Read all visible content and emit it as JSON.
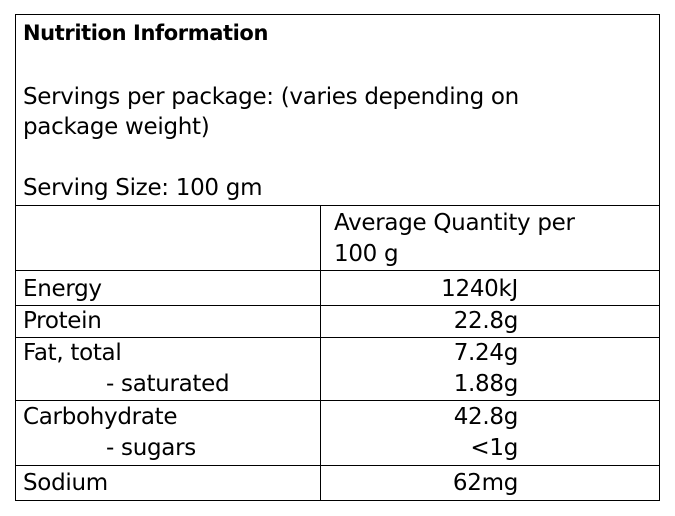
{
  "panel": {
    "title": "Nutrition Information",
    "servings_line1": "Servings per package: (varies depending on",
    "servings_line2": "package weight)",
    "serving_size": "Serving Size: 100 gm"
  },
  "table": {
    "column_header_line1": "Average Quantity per",
    "column_header_line2": "100 g",
    "rows": [
      {
        "label": "Energy",
        "value": "1240kJ"
      },
      {
        "label": "Protein",
        "value": "22.8g"
      },
      {
        "label": "Fat, total",
        "value": "7.24g"
      },
      {
        "label": "- saturated",
        "value": "1.88g"
      },
      {
        "label": "Carbohydrate",
        "value": "42.8g"
      },
      {
        "label": "- sugars",
        "value": "<1g"
      },
      {
        "label": "Sodium",
        "value": "62mg"
      }
    ]
  }
}
